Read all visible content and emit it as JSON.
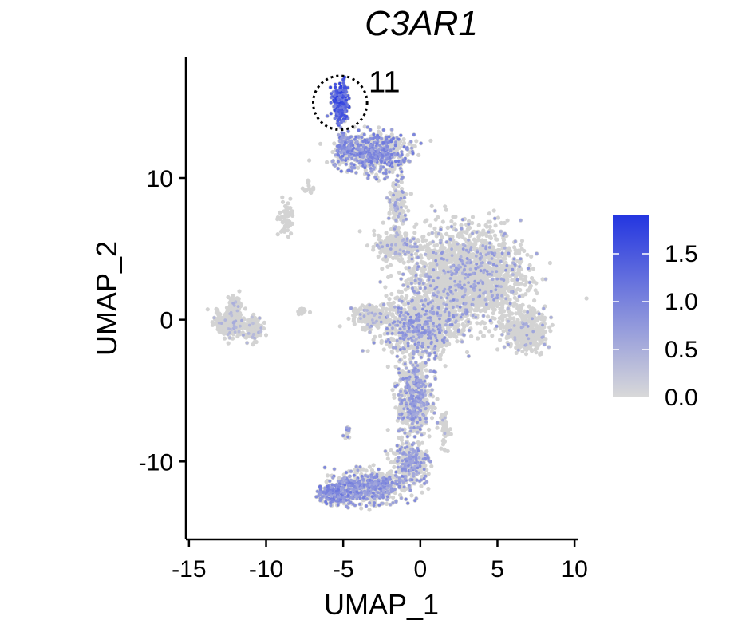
{
  "chart_data": {
    "type": "scatter",
    "title": "C3AR1",
    "xlabel": "UMAP_1",
    "ylabel": "UMAP_2",
    "xlim": [
      -15.2,
      10.2
    ],
    "ylim": [
      -15.5,
      18.5
    ],
    "x_ticks": [
      -15,
      -10,
      -5,
      0,
      5,
      10
    ],
    "x_tick_labels": [
      "-15",
      "-10",
      "-5",
      "0",
      "5",
      "10"
    ],
    "y_ticks": [
      -10,
      0,
      10
    ],
    "y_tick_labels": [
      "-10",
      "0",
      "10"
    ],
    "grid": false,
    "legend": {
      "placement": "right",
      "type": "colorbar",
      "min": 0.0,
      "max": 1.9,
      "ticks": [
        0.0,
        0.5,
        1.0,
        1.5
      ],
      "tick_labels": [
        "0.0",
        "0.5",
        "1.0",
        "1.5"
      ],
      "low_color": "#d9d9d9",
      "high_color": "#2436e0"
    },
    "point_colors": {
      "base": "#d3d3d3"
    },
    "annotation": {
      "label": "11",
      "center": [
        -5.2,
        15.3
      ],
      "radius": 1.9
    },
    "clusters": [
      {
        "center": [
          -5.2,
          15.3
        ],
        "spread": [
          0.45,
          1.1
        ],
        "n": 260,
        "expr_frac": 0.95,
        "expr_level": 1.6
      },
      {
        "center": [
          -3.0,
          11.8
        ],
        "spread": [
          1.9,
          1.2
        ],
        "n": 700,
        "expr_frac": 0.55,
        "expr_level": 1.0
      },
      {
        "center": [
          -5.0,
          12.0
        ],
        "spread": [
          0.5,
          1.0
        ],
        "n": 120,
        "expr_frac": 0.6,
        "expr_level": 1.0
      },
      {
        "center": [
          -1.5,
          8.0
        ],
        "spread": [
          0.5,
          1.4
        ],
        "n": 140,
        "expr_frac": 0.2,
        "expr_level": 0.7
      },
      {
        "center": [
          -1.5,
          5.2
        ],
        "spread": [
          1.3,
          0.9
        ],
        "n": 260,
        "expr_frac": 0.1,
        "expr_level": 0.6
      },
      {
        "center": [
          3.0,
          3.0
        ],
        "spread": [
          3.3,
          3.0
        ],
        "n": 2200,
        "expr_frac": 0.14,
        "expr_level": 0.7
      },
      {
        "center": [
          0.0,
          -0.5
        ],
        "spread": [
          2.0,
          1.8
        ],
        "n": 900,
        "expr_frac": 0.25,
        "expr_level": 0.8
      },
      {
        "center": [
          6.8,
          -0.8
        ],
        "spread": [
          1.2,
          1.3
        ],
        "n": 420,
        "expr_frac": 0.1,
        "expr_level": 0.6
      },
      {
        "center": [
          -3.2,
          0.2
        ],
        "spread": [
          1.1,
          0.8
        ],
        "n": 240,
        "expr_frac": 0.1,
        "expr_level": 0.6
      },
      {
        "center": [
          -0.4,
          -5.5
        ],
        "spread": [
          1.0,
          2.4
        ],
        "n": 650,
        "expr_frac": 0.35,
        "expr_level": 0.8
      },
      {
        "center": [
          -0.6,
          -10.2
        ],
        "spread": [
          1.0,
          1.4
        ],
        "n": 330,
        "expr_frac": 0.4,
        "expr_level": 0.8
      },
      {
        "center": [
          -3.5,
          -11.8
        ],
        "spread": [
          1.8,
          1.0
        ],
        "n": 650,
        "expr_frac": 0.5,
        "expr_level": 0.9
      },
      {
        "center": [
          -5.6,
          -12.3
        ],
        "spread": [
          0.9,
          0.6
        ],
        "n": 220,
        "expr_frac": 0.7,
        "expr_level": 1.0
      },
      {
        "center": [
          -12.3,
          -0.2
        ],
        "spread": [
          0.8,
          0.8
        ],
        "n": 360,
        "expr_frac": 0.06,
        "expr_level": 0.5
      },
      {
        "center": [
          -10.8,
          -0.6
        ],
        "spread": [
          0.5,
          0.7
        ],
        "n": 120,
        "expr_frac": 0.06,
        "expr_level": 0.5
      },
      {
        "center": [
          -12.0,
          1.1
        ],
        "spread": [
          0.4,
          0.5
        ],
        "n": 70,
        "expr_frac": 0.1,
        "expr_level": 0.5
      },
      {
        "center": [
          -8.7,
          7.0
        ],
        "spread": [
          0.4,
          1.5
        ],
        "n": 55,
        "expr_frac": 0.0,
        "expr_level": 0.0
      },
      {
        "center": [
          -7.3,
          9.3
        ],
        "spread": [
          0.3,
          0.4
        ],
        "n": 15,
        "expr_frac": 0.0,
        "expr_level": 0.0
      },
      {
        "center": [
          -7.7,
          0.6
        ],
        "spread": [
          0.3,
          0.25
        ],
        "n": 14,
        "expr_frac": 0.0,
        "expr_level": 0.0
      },
      {
        "center": [
          -4.8,
          -8.0
        ],
        "spread": [
          0.25,
          0.4
        ],
        "n": 14,
        "expr_frac": 0.5,
        "expr_level": 0.8
      },
      {
        "center": [
          1.6,
          -7.8
        ],
        "spread": [
          0.3,
          1.2
        ],
        "n": 40,
        "expr_frac": 0.1,
        "expr_level": 0.5
      }
    ]
  }
}
